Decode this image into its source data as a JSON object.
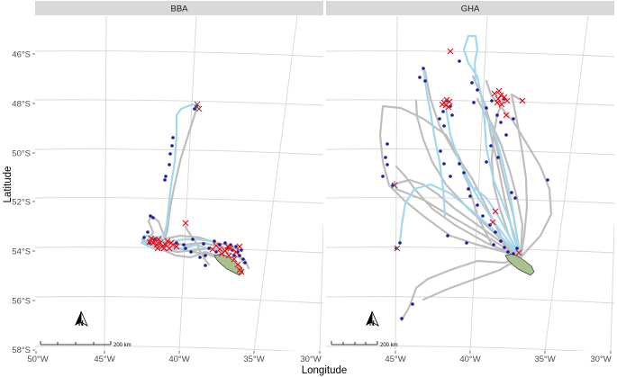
{
  "facets": [
    {
      "id": "bba",
      "label": "BBA"
    },
    {
      "id": "gha",
      "label": "GHA"
    }
  ],
  "axes": {
    "xlabel": "Longitude",
    "ylabel": "Latitude",
    "lat_ticks": [
      "46°S",
      "48°S",
      "50°S",
      "52°S",
      "54°S",
      "56°S",
      "58°S"
    ],
    "lon_ticks": [
      "50°W",
      "45°W",
      "40°W",
      "35°W",
      "30°W"
    ]
  },
  "scale_bar": {
    "label": "200 km"
  },
  "north_arrow": {
    "label": "N"
  },
  "colors": {
    "panel_bg": "#ffffff",
    "strip_bg": "#d9d9d9",
    "graticule": "#d6d6d6",
    "track_grey": "#bebebe",
    "track_lightblue": "#a3d8ec",
    "point_darkblue": "#1b1f9c",
    "cross_red": "#e8101c",
    "land_fill": "#a9c08f",
    "land_stroke": "#2f3d2a"
  },
  "legend": "none"
}
